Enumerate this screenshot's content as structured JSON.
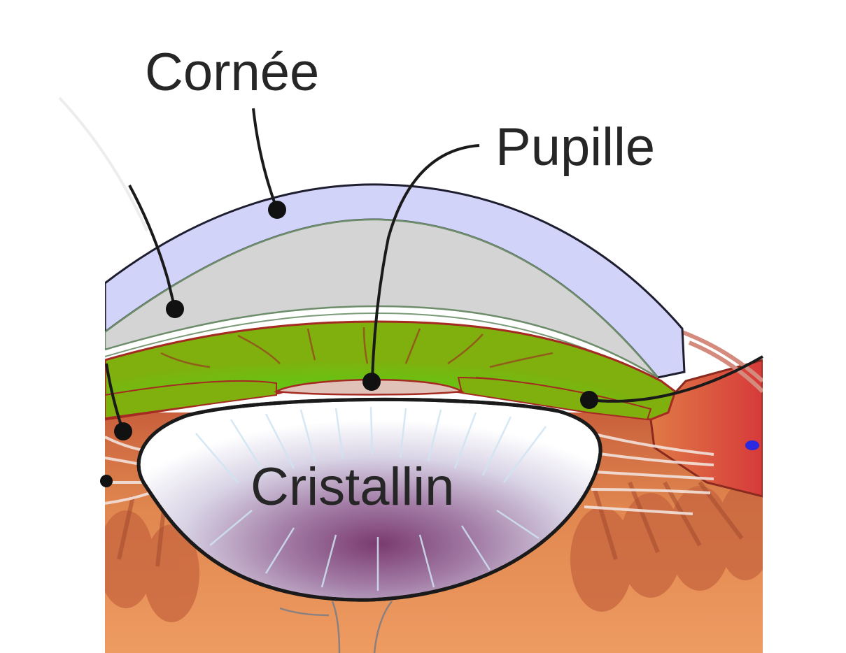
{
  "diagram": {
    "subject": "eye-anterior-segment",
    "labels": {
      "cornea": "Cornée",
      "pupil": "Pupille",
      "lens": "Cristallin"
    },
    "colors": {
      "background": "#ffffff",
      "cornea": "#d2d3f8",
      "aqueous_humor": "#d4d4d4",
      "iris": "#7fbc0e",
      "iris_center": "#35d41c",
      "tissue": "#e08a52",
      "muscle": "#d8443a",
      "lens_rim": "#1a1a1a",
      "leader": "#1a1a1a"
    }
  }
}
